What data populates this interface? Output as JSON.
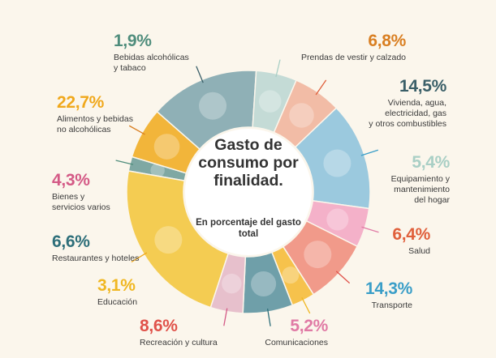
{
  "chart_data": {
    "type": "pie",
    "title": "Gasto de consumo por finalidad.",
    "subtitle": "En porcentaje del gasto total",
    "categories": [
      "Bebidas alcohólicas y tabaco",
      "Prendas de vestir y calzado",
      "Vivienda, agua, electricidad, gas y otros combustibles",
      "Equipamiento y mantenimiento del hogar",
      "Salud",
      "Transporte",
      "Comunicaciones",
      "Recreación y cultura",
      "Educación",
      "Restaurantes y hoteles",
      "Bienes y servicios varios",
      "Alimentos y bebidas no alcohólicas"
    ],
    "values": [
      1.9,
      6.8,
      14.5,
      5.4,
      6.4,
      14.3,
      5.2,
      8.6,
      3.1,
      6.6,
      4.3,
      22.7
    ],
    "colors": [
      "#7fa8a3",
      "#f2b53a",
      "#8fb0b6",
      "#c4dbd6",
      "#f2bca6",
      "#9bc9de",
      "#f4b1c9",
      "#f19a8a",
      "#f6c24c",
      "#6f9fa9",
      "#e7c0cc",
      "#f4cc52"
    ],
    "segments": [
      {
        "pct": "1,9%",
        "label": "Bebidas alcohólicas\ny tabaco",
        "pct_color": "#4f8d7c",
        "icon": "bottle-icon"
      },
      {
        "pct": "6,8%",
        "label": "Prendas de vestir y calzado",
        "pct_color": "#d97f22",
        "icon": "tshirt-shoe-icon"
      },
      {
        "pct": "14,5%",
        "label": "Vivienda, agua,\nelectricidad, gas\ny otros combustibles",
        "pct_color": "#3a5f68",
        "icon": "key-bulb-icon"
      },
      {
        "pct": "5,4%",
        "label": "Equipamiento y\nmantenimiento\ndel hogar",
        "pct_color": "#a9cfc5",
        "icon": "washing-machine-icon"
      },
      {
        "pct": "6,4%",
        "label": "Salud",
        "pct_color": "#e0603c",
        "icon": "medical-cross-icon"
      },
      {
        "pct": "14,3%",
        "label": "Transporte",
        "pct_color": "#3a9ec8",
        "icon": "car-bus-icon"
      },
      {
        "pct": "5,2%",
        "label": "Comunicaciones",
        "pct_color": "#e07aa5",
        "icon": "phone-icon"
      },
      {
        "pct": "8,6%",
        "label": "Recreación y cultura",
        "pct_color": "#e0524a",
        "icon": "guitar-ball-icon"
      },
      {
        "pct": "3,1%",
        "label": "Educación",
        "pct_color": "#f0b722",
        "icon": "book-icon"
      },
      {
        "pct": "6,6%",
        "label": "Restaurantes y hoteles",
        "pct_color": "#2e6f7a",
        "icon": "plate-suitcase-icon"
      },
      {
        "pct": "4,3%",
        "label": "Bienes y\nservicios varios",
        "pct_color": "#d45a86",
        "icon": "scissors-icon"
      },
      {
        "pct": "22,7%",
        "label": "Alimentos y bebidas\nno alcohólicas",
        "pct_color": "#f0a81c",
        "icon": "chicken-glass-icon"
      }
    ]
  }
}
